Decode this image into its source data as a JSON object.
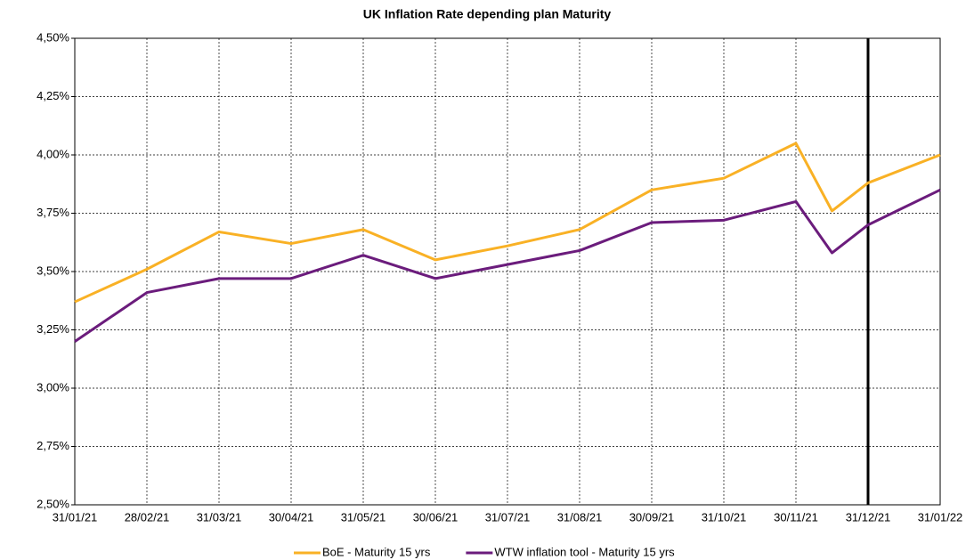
{
  "chart_data": {
    "type": "line",
    "title": "UK Inflation Rate depending plan Maturity",
    "categories": [
      "31/01/21",
      "28/02/21",
      "31/03/21",
      "30/04/21",
      "31/05/21",
      "30/06/21",
      "31/07/21",
      "31/08/21",
      "30/09/21",
      "31/10/21",
      "30/11/21",
      null,
      "31/12/21",
      "31/01/22"
    ],
    "series": [
      {
        "name": "BoE - Maturity 15 yrs",
        "color": "#f9b125",
        "values": [
          3.37,
          3.51,
          3.67,
          3.62,
          3.68,
          3.55,
          3.61,
          3.68,
          3.85,
          3.9,
          4.05,
          3.76,
          3.88,
          4.0
        ]
      },
      {
        "name": "WTW inflation tool - Maturity 15 yrs",
        "color": "#6b1c7c",
        "values": [
          3.2,
          3.41,
          3.47,
          3.47,
          3.57,
          3.47,
          3.53,
          3.59,
          3.71,
          3.72,
          3.8,
          3.58,
          3.7,
          3.85
        ]
      }
    ],
    "ylim": [
      2.5,
      4.5
    ],
    "yticks": [
      {
        "value": 2.5,
        "label": "2,50%"
      },
      {
        "value": 2.75,
        "label": "2,75%"
      },
      {
        "value": 3.0,
        "label": "3,00%"
      },
      {
        "value": 3.25,
        "label": "3,25%"
      },
      {
        "value": 3.5,
        "label": "3,50%"
      },
      {
        "value": 3.75,
        "label": "3,75%"
      },
      {
        "value": 4.0,
        "label": "4,00%"
      },
      {
        "value": 4.25,
        "label": "4,25%"
      },
      {
        "value": 4.5,
        "label": "4,50%"
      }
    ],
    "grid": true,
    "legend": "bottom"
  }
}
